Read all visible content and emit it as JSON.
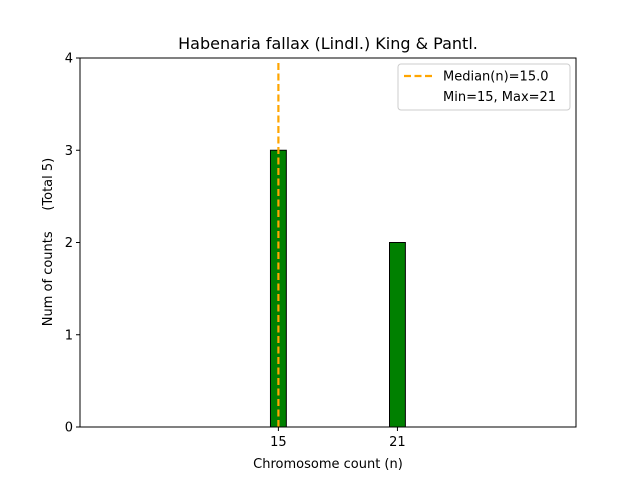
{
  "chart_data": {
    "type": "bar",
    "title": "Habenaria fallax (Lindl.) King & Pantl.",
    "xlabel": "Chromosome count (n)",
    "ylabel": "Num of counts     (Total 5)",
    "xlim": [
      5,
      30
    ],
    "ylim": [
      0,
      4
    ],
    "x_ticks": [
      15,
      21
    ],
    "y_ticks": [
      0,
      1,
      2,
      3,
      4
    ],
    "bars": [
      {
        "x": 15,
        "value": 3
      },
      {
        "x": 21,
        "value": 2
      }
    ],
    "bar_width": 0.8,
    "bar_color": "#008000",
    "bar_edge_color": "#000000",
    "baseline_x_end": 23,
    "median": {
      "value": 15.0,
      "label": "Median(n)=15.0",
      "color": "#FFA500"
    },
    "legend": {
      "placement": "upper right",
      "entries": [
        "Median(n)=15.0",
        "Min=15, Max=21"
      ]
    },
    "grid": false
  }
}
